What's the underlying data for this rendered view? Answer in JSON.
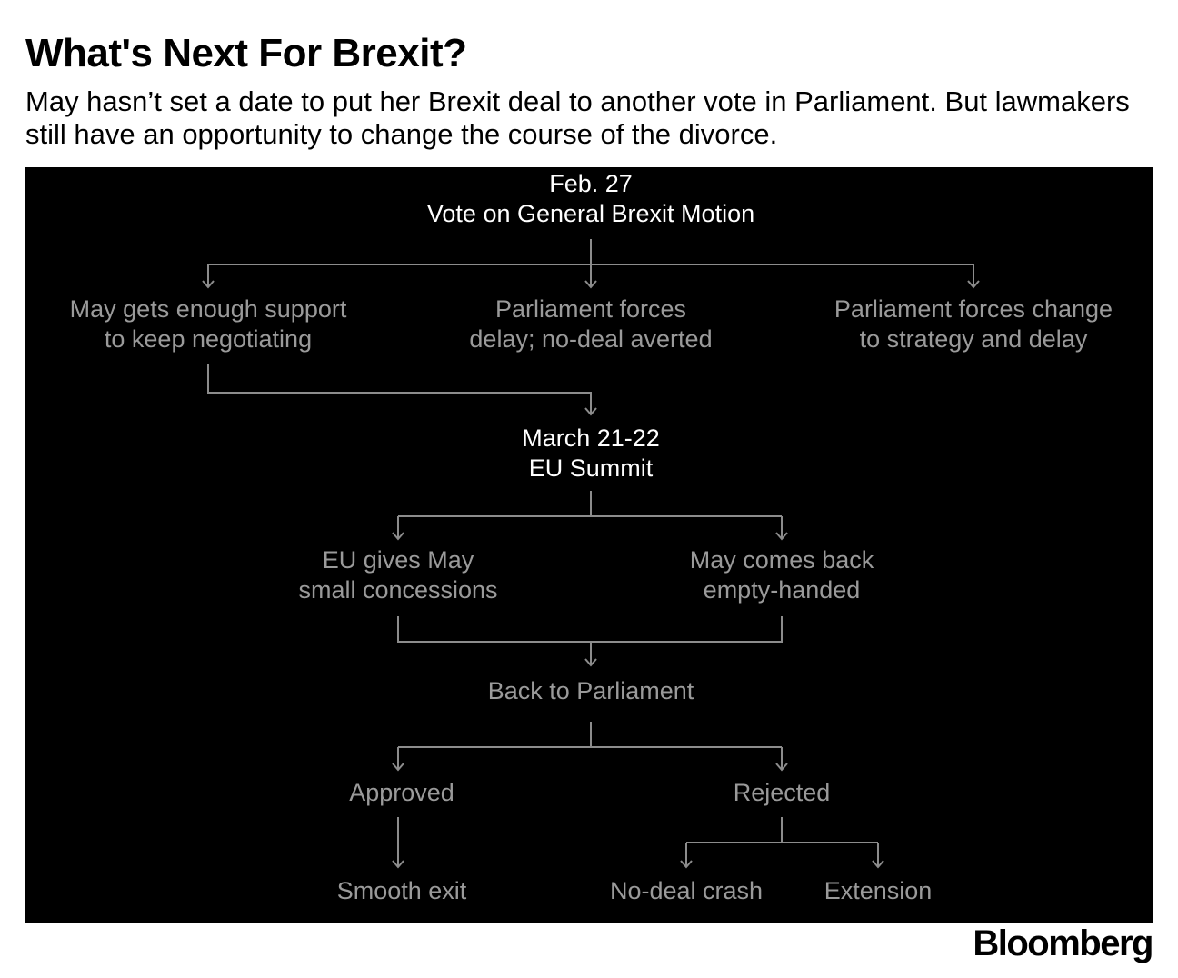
{
  "header": {
    "title": "What's Next For Brexit?",
    "subtitle": "May hasn’t set a date to put her Brexit deal to another vote in Parliament. But lawmakers still have an opportunity to change the course of the divorce."
  },
  "colors": {
    "panel_background": "#000000",
    "primary_text": "#ffffff",
    "secondary_text": "#9a9a9a",
    "connector": "#8c8c8c"
  },
  "flowchart": {
    "vote": {
      "line1": "Feb. 27",
      "line2": "Vote on General Brexit Motion"
    },
    "outcomes": [
      {
        "line1": "May gets enough support",
        "line2": "to keep negotiating"
      },
      {
        "line1": "Parliament forces",
        "line2": "delay; no-deal averted"
      },
      {
        "line1": "Parliament forces change",
        "line2": "to strategy and delay"
      }
    ],
    "summit": {
      "line1": "March 21-22",
      "line2": "EU Summit"
    },
    "summit_outcomes": [
      {
        "line1": "EU gives May",
        "line2": "small concessions"
      },
      {
        "line1": "May comes back",
        "line2": "empty-handed"
      }
    ],
    "back_to_parliament": "Back to Parliament",
    "approved": "Approved",
    "rejected": "Rejected",
    "smooth_exit": "Smooth exit",
    "no_deal_crash": "No-deal crash",
    "extension": "Extension"
  },
  "footer": {
    "logo": "Bloomberg"
  }
}
